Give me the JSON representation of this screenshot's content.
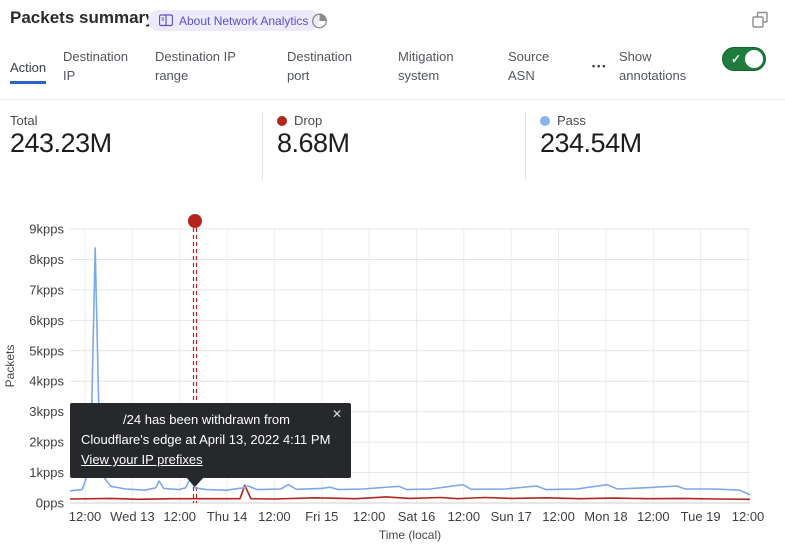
{
  "header": {
    "title": "Packets summary",
    "badge_label": "About Network Analytics",
    "icons": {
      "badge": "book-icon",
      "time": "pie-clock-icon",
      "expand": "overlapping-windows-icon"
    }
  },
  "tabs": {
    "items": [
      {
        "label": "Action",
        "active": true
      },
      {
        "label": "Destination IP",
        "active": false
      },
      {
        "label": "Destination IP range",
        "active": false
      },
      {
        "label": "Destination port",
        "active": false
      },
      {
        "label": "Mitigation system",
        "active": false
      },
      {
        "label": "Source ASN",
        "active": false
      }
    ],
    "more_label": "•••",
    "annotations_toggle": {
      "label": "Show annotations",
      "state": "on",
      "color": "#1e7d3e"
    }
  },
  "stats": [
    {
      "label": "Total",
      "value": "243.23M",
      "dot_color": null
    },
    {
      "label": "Drop",
      "value": "8.68M",
      "dot_color": "#b2271d"
    },
    {
      "label": "Pass",
      "value": "234.54M",
      "dot_color": "#8ab4ea"
    }
  ],
  "tooltip": {
    "line1": "/24 has been withdrawn from",
    "line2": "Cloudflare's edge at April 13, 2022 4:11 PM",
    "link": "View your IP prefixes",
    "close": "✕"
  },
  "chart_data": {
    "type": "line",
    "title": "Packets summary",
    "xlabel": "Time (local)",
    "ylabel": "Packets",
    "y_unit": "kpps",
    "ylim": [
      0,
      9
    ],
    "grid": true,
    "legend": [
      {
        "label": "Drop",
        "color": "#b2271d"
      },
      {
        "label": "Pass",
        "color": "#7da9e8"
      }
    ],
    "y_ticks": [
      {
        "label": "9kpps",
        "v": 9
      },
      {
        "label": "8kpps",
        "v": 8
      },
      {
        "label": "7kpps",
        "v": 7
      },
      {
        "label": "6kpps",
        "v": 6
      },
      {
        "label": "5kpps",
        "v": 5
      },
      {
        "label": "4kpps",
        "v": 4
      },
      {
        "label": "3kpps",
        "v": 3
      },
      {
        "label": "2kpps",
        "v": 2
      },
      {
        "label": "1kpps",
        "v": 1
      },
      {
        "label": "0pps",
        "v": 0
      }
    ],
    "x_ticks": [
      {
        "label": "12:00",
        "f": 0.0221
      },
      {
        "label": "Wed 13",
        "f": 0.0917
      },
      {
        "label": "12:00",
        "f": 0.1613
      },
      {
        "label": "Thu 14",
        "f": 0.231
      },
      {
        "label": "12:00",
        "f": 0.3006
      },
      {
        "label": "Fri 15",
        "f": 0.3703
      },
      {
        "label": "12:00",
        "f": 0.4399
      },
      {
        "label": "Sat 16",
        "f": 0.5096
      },
      {
        "label": "12:00",
        "f": 0.5792
      },
      {
        "label": "Sun 17",
        "f": 0.6489
      },
      {
        "label": "12:00",
        "f": 0.7185
      },
      {
        "label": "Mon 18",
        "f": 0.7882
      },
      {
        "label": "12:00",
        "f": 0.8578
      },
      {
        "label": "Tue 19",
        "f": 0.9274
      },
      {
        "label": "12:00",
        "f": 0.9971
      }
    ],
    "annotation": {
      "x_frac": 0.1838,
      "color": "#b5231c",
      "event": "IP prefix withdrawn April 13, 2022 4:11 PM"
    },
    "series": [
      {
        "name": "Pass",
        "color": "#7da9e8",
        "points": [
          [
            0.0,
            0.4
          ],
          [
            0.018,
            0.44
          ],
          [
            0.03,
            1.2
          ],
          [
            0.037,
            8.38
          ],
          [
            0.043,
            2.5
          ],
          [
            0.048,
            0.9
          ],
          [
            0.06,
            0.55
          ],
          [
            0.082,
            0.46
          ],
          [
            0.11,
            0.42
          ],
          [
            0.126,
            0.5
          ],
          [
            0.131,
            0.72
          ],
          [
            0.138,
            0.48
          ],
          [
            0.16,
            0.44
          ],
          [
            0.17,
            0.5
          ],
          [
            0.176,
            0.76
          ],
          [
            0.184,
            0.5
          ],
          [
            0.2,
            0.44
          ],
          [
            0.23,
            0.42
          ],
          [
            0.255,
            0.5
          ],
          [
            0.262,
            0.56
          ],
          [
            0.275,
            0.44
          ],
          [
            0.31,
            0.46
          ],
          [
            0.321,
            0.6
          ],
          [
            0.333,
            0.45
          ],
          [
            0.37,
            0.48
          ],
          [
            0.382,
            0.52
          ],
          [
            0.395,
            0.44
          ],
          [
            0.43,
            0.46
          ],
          [
            0.484,
            0.55
          ],
          [
            0.495,
            0.44
          ],
          [
            0.53,
            0.46
          ],
          [
            0.578,
            0.6
          ],
          [
            0.59,
            0.45
          ],
          [
            0.64,
            0.46
          ],
          [
            0.686,
            0.56
          ],
          [
            0.7,
            0.44
          ],
          [
            0.745,
            0.46
          ],
          [
            0.79,
            0.6
          ],
          [
            0.805,
            0.46
          ],
          [
            0.845,
            0.5
          ],
          [
            0.892,
            0.56
          ],
          [
            0.905,
            0.46
          ],
          [
            0.95,
            0.46
          ],
          [
            0.985,
            0.42
          ],
          [
            0.997,
            0.3
          ],
          [
            1.0,
            0.26
          ]
        ]
      },
      {
        "name": "Drop",
        "color": "#b2271d",
        "points": [
          [
            0.0,
            0.13
          ],
          [
            0.06,
            0.15
          ],
          [
            0.1,
            0.12
          ],
          [
            0.15,
            0.14
          ],
          [
            0.25,
            0.14
          ],
          [
            0.257,
            0.58
          ],
          [
            0.266,
            0.14
          ],
          [
            0.3,
            0.13
          ],
          [
            0.36,
            0.17
          ],
          [
            0.42,
            0.14
          ],
          [
            0.465,
            0.2
          ],
          [
            0.5,
            0.15
          ],
          [
            0.545,
            0.18
          ],
          [
            0.57,
            0.14
          ],
          [
            0.61,
            0.18
          ],
          [
            0.65,
            0.15
          ],
          [
            0.7,
            0.17
          ],
          [
            0.75,
            0.14
          ],
          [
            0.8,
            0.16
          ],
          [
            0.85,
            0.14
          ],
          [
            0.9,
            0.15
          ],
          [
            0.95,
            0.13
          ],
          [
            1.0,
            0.12
          ]
        ]
      }
    ]
  }
}
